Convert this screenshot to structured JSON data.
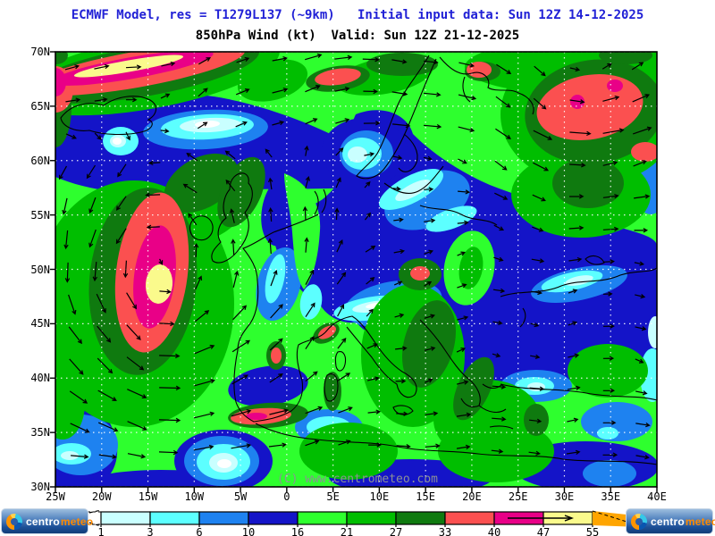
{
  "header": {
    "line1": "ECMWF Model, res = T1279L137 (~9km)   Initial input data: Sun 12Z 14-12-2025",
    "line2": "850hPa Wind (kt)  Valid: Sun 12Z 21-12-2025",
    "title_color": "#2121d6"
  },
  "map": {
    "watermark": "(C) www.centrometeo.com",
    "lat_labels": [
      "70N",
      "65N",
      "60N",
      "55N",
      "50N",
      "45N",
      "40N",
      "35N",
      "30N"
    ],
    "lat_values": [
      70,
      65,
      60,
      55,
      50,
      45,
      40,
      35,
      30
    ],
    "lon_labels": [
      "25W",
      "20W",
      "15W",
      "10W",
      "5W",
      "0",
      "5E",
      "10E",
      "15E",
      "20E",
      "25E",
      "30E",
      "35E",
      "40E"
    ],
    "lon_values": [
      -25,
      -20,
      -15,
      -10,
      -5,
      0,
      5,
      10,
      15,
      20,
      25,
      30,
      35,
      40
    ]
  },
  "legend": {
    "tick_labels": [
      "1",
      "3",
      "6",
      "10",
      "16",
      "21",
      "27",
      "33",
      "40",
      "47",
      "55"
    ],
    "box_colors": [
      "#C9FFFF",
      "#5CFFFF",
      "#1E82F0",
      "#1414C8",
      "#2EFF2E",
      "#00BE00",
      "#0F7A0F",
      "#FB5050",
      "#E90087",
      "#FAFA8C"
    ],
    "below_min_color": "#FFFFFF",
    "arrow_color": "#FFA500"
  },
  "logo": {
    "part1": "centro",
    "part2": "meteo"
  },
  "chart_data": {
    "type": "heatmap",
    "title": "850hPa Wind (kt)",
    "model": "ECMWF",
    "resolution": "T1279L137 (~9km)",
    "initial_time": "Sun 12Z 14-12-2025",
    "valid_time": "Sun 12Z 21-12-2025",
    "variable": "wind speed at 850 hPa",
    "units": "kt",
    "lat_range": [
      "30N",
      "70N"
    ],
    "lon_range": [
      "25W",
      "40E"
    ],
    "lat_ticks": [
      "70N",
      "65N",
      "60N",
      "55N",
      "50N",
      "45N",
      "40N",
      "35N",
      "30N"
    ],
    "lon_ticks": [
      "25W",
      "20W",
      "15W",
      "10W",
      "5W",
      "0",
      "5E",
      "10E",
      "15E",
      "20E",
      "25E",
      "30E",
      "35E",
      "40E"
    ],
    "speed_thresholds_kt": [
      1,
      3,
      6,
      10,
      16,
      21,
      27,
      33,
      40,
      47,
      55
    ],
    "palette": {
      "lt_1": "#FFFFFF",
      "1_3": "#C9FFFF",
      "3_6": "#5CFFFF",
      "6_10": "#1E82F0",
      "10_16": "#1414C8",
      "16_21": "#2EFF2E",
      "21_27": "#00BE00",
      "27_33": "#0F7A0F",
      "33_40": "#FB5050",
      "40_47": "#E90087",
      "47_55": "#FAFA8C",
      "gt_55": "#FFA500"
    },
    "grid": "dotted 5-degree graticule",
    "legend_position": "bottom",
    "overlays": [
      "wind direction arrows",
      "coastlines",
      "copyright watermark"
    ],
    "max_wind_features": [
      {
        "location": "jet band NW corner near 68N 18W",
        "speed_kt": "47-55 (yellow core)"
      },
      {
        "location": "Atlantic cyclone 45-53N around 16W",
        "speed_kt": "47-55 (yellow core)"
      },
      {
        "location": "NW Russia 63-67N 28-38E",
        "speed_kt": "40-47 (magenta cores)"
      },
      {
        "location": "Alboran Sea / S Spain 36N",
        "speed_kt": "40-47"
      },
      {
        "location": "Alps region 47N 14E",
        "speed_kt": "33-40"
      },
      {
        "location": "Cantabria 43N 8W and Ebro 42N 3W",
        "speed_kt": "33-40"
      },
      {
        "location": "White Sea 66N 17E spot",
        "speed_kt": "33-40"
      }
    ],
    "calm_features": [
      {
        "location": "south of Iceland 62N 10-18W",
        "speed_kt": "<3"
      },
      {
        "location": "Baltic 57N 15-22E",
        "speed_kt": "1-3"
      },
      {
        "location": "Po valley / Alps south 45N 8-14E",
        "speed_kt": "<1"
      },
      {
        "location": "Morocco 33N 10W",
        "speed_kt": "<1"
      },
      {
        "location": "western Black Sea 45N 30E",
        "speed_kt": "1-3"
      }
    ]
  }
}
